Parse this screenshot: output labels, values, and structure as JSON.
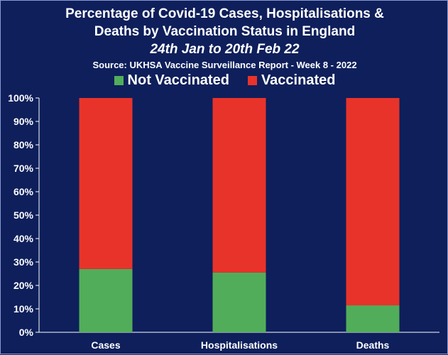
{
  "chart_data": {
    "type": "bar",
    "stacked": true,
    "title_lines": [
      "Percentage of Covid-19 Cases, Hospitalisations &",
      "Deaths by Vaccination Status in England"
    ],
    "subtitle": "24th Jan to 20th Feb 22",
    "source": "Source: UKHSA Vaccine Surveillance Report - Week 8 - 2022",
    "categories": [
      "Cases",
      "Hospitalisations",
      "Deaths"
    ],
    "series": [
      {
        "name": "Not Vaccinated",
        "color": "#52ad5a",
        "values": [
          27,
          25.5,
          11.5
        ]
      },
      {
        "name": "Vaccinated",
        "color": "#e8332a",
        "values": [
          73,
          74.5,
          88.5
        ]
      }
    ],
    "ylim": [
      0,
      100
    ],
    "yticks": [
      "0%",
      "10%",
      "20%",
      "30%",
      "40%",
      "50%",
      "60%",
      "70%",
      "80%",
      "90%",
      "100%"
    ],
    "grid": false,
    "legend_position": "top"
  }
}
